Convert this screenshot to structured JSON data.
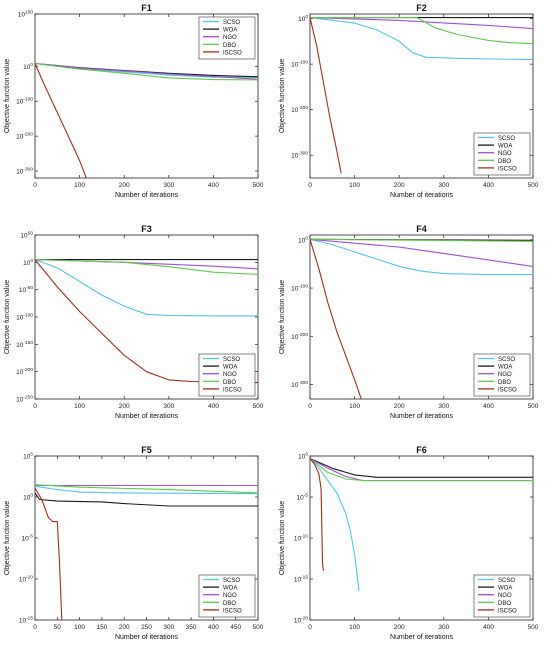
{
  "figure": {
    "series_names": [
      "SCSO",
      "WOA",
      "NGO",
      "DBO",
      "ISCSO"
    ],
    "colors": {
      "SCSO": "#57c4e5",
      "WOA": "#1a1a1a",
      "NGO": "#a24fd0",
      "DBO": "#5fc94a",
      "ISCSO": "#9c2f1e"
    }
  },
  "chart_data": [
    {
      "type": "line",
      "title": "F1",
      "xlabel": "Number of iterations",
      "ylabel": "Objective function value",
      "log_y": true,
      "xlim": [
        0,
        500
      ],
      "ylim_exp": [
        -320,
        150
      ],
      "x_ticks": [
        "0",
        "100",
        "200",
        "300",
        "400",
        "500"
      ],
      "y_ticks": [
        {
          "exp": 150,
          "label": "10^150"
        },
        {
          "exp": 0,
          "label": "10^0"
        },
        {
          "exp": -100,
          "label": "10^-100"
        },
        {
          "exp": -200,
          "label": "10^-200"
        },
        {
          "exp": -300,
          "label": "10^-300"
        }
      ],
      "legend": {
        "position": "top-right",
        "entries": [
          "SCSO",
          "WOA",
          "NGO",
          "DBO",
          "ISCSO"
        ]
      },
      "series": [
        {
          "name": "SCSO",
          "points": [
            [
              0,
              8
            ],
            [
              50,
              0
            ],
            [
              100,
              -8
            ],
            [
              200,
              -16
            ],
            [
              300,
              -25
            ],
            [
              400,
              -31
            ],
            [
              500,
              -32
            ]
          ]
        },
        {
          "name": "WOA",
          "points": [
            [
              0,
              8
            ],
            [
              50,
              2
            ],
            [
              100,
              -4
            ],
            [
              200,
              -12
            ],
            [
              300,
              -20
            ],
            [
              400,
              -26
            ],
            [
              500,
              -30
            ]
          ]
        },
        {
          "name": "NGO",
          "points": [
            [
              0,
              8
            ],
            [
              50,
              2
            ],
            [
              100,
              -5
            ],
            [
              200,
              -13
            ],
            [
              300,
              -22
            ],
            [
              400,
              -29
            ],
            [
              500,
              -37
            ]
          ]
        },
        {
          "name": "DBO",
          "points": [
            [
              0,
              8
            ],
            [
              50,
              0
            ],
            [
              100,
              -8
            ],
            [
              200,
              -20
            ],
            [
              300,
              -33
            ],
            [
              400,
              -38
            ],
            [
              500,
              -39
            ]
          ]
        },
        {
          "name": "ISCSO",
          "points": [
            [
              0,
              8
            ],
            [
              20,
              -50
            ],
            [
              40,
              -105
            ],
            [
              60,
              -160
            ],
            [
              80,
              -215
            ],
            [
              100,
              -270
            ],
            [
              115,
              -320
            ]
          ]
        }
      ]
    },
    {
      "type": "line",
      "title": "F2",
      "xlabel": "Number of iterations",
      "ylabel": "Objective function value",
      "log_y": true,
      "xlim": [
        0,
        500
      ],
      "ylim_exp": [
        -350,
        10
      ],
      "x_ticks": [
        "0",
        "100",
        "200",
        "300",
        "400",
        "500"
      ],
      "y_ticks": [
        {
          "exp": 0,
          "label": "10^0"
        },
        {
          "exp": -100,
          "label": "10^-100"
        },
        {
          "exp": -200,
          "label": "10^-200"
        },
        {
          "exp": -300,
          "label": "10^-300"
        }
      ],
      "legend": {
        "position": "bottom-right",
        "entries": [
          "SCSO",
          "WOA",
          "NGO",
          "DBO",
          "ISCSO"
        ]
      },
      "series": [
        {
          "name": "SCSO",
          "points": [
            [
              0,
              2
            ],
            [
              100,
              -10
            ],
            [
              150,
              -25
            ],
            [
              200,
              -50
            ],
            [
              230,
              -75
            ],
            [
              260,
              -85
            ],
            [
              350,
              -88
            ],
            [
              500,
              -90
            ]
          ]
        },
        {
          "name": "WOA",
          "points": [
            [
              0,
              2
            ],
            [
              500,
              2
            ]
          ]
        },
        {
          "name": "NGO",
          "points": [
            [
              0,
              2
            ],
            [
              200,
              -4
            ],
            [
              400,
              -15
            ],
            [
              500,
              -22
            ]
          ]
        },
        {
          "name": "DBO",
          "points": [
            [
              0,
              2
            ],
            [
              240,
              2
            ],
            [
              280,
              -20
            ],
            [
              330,
              -35
            ],
            [
              400,
              -48
            ],
            [
              450,
              -53
            ],
            [
              500,
              -55
            ]
          ]
        },
        {
          "name": "ISCSO",
          "points": [
            [
              0,
              2
            ],
            [
              15,
              -60
            ],
            [
              30,
              -140
            ],
            [
              45,
              -220
            ],
            [
              60,
              -290
            ],
            [
              70,
              -340
            ]
          ]
        }
      ]
    },
    {
      "type": "line",
      "title": "F3",
      "xlabel": "Number of iterations",
      "ylabel": "Objective function value",
      "log_y": true,
      "xlim": [
        0,
        500
      ],
      "ylim_exp": [
        -250,
        50
      ],
      "x_ticks": [
        "0",
        "100",
        "200",
        "300",
        "400",
        "500"
      ],
      "y_ticks": [
        {
          "exp": 50,
          "label": "10^50"
        },
        {
          "exp": 0,
          "label": "10^0"
        },
        {
          "exp": -50,
          "label": "10^-50"
        },
        {
          "exp": -100,
          "label": "10^-100"
        },
        {
          "exp": -150,
          "label": "10^-150"
        },
        {
          "exp": -200,
          "label": "10^-200"
        },
        {
          "exp": -250,
          "label": "10^-250"
        }
      ],
      "legend": {
        "position": "bottom-right",
        "entries": [
          "SCSO",
          "WOA",
          "NGO",
          "DBO",
          "ISCSO"
        ]
      },
      "series": [
        {
          "name": "SCSO",
          "points": [
            [
              0,
              5
            ],
            [
              50,
              -10
            ],
            [
              100,
              -35
            ],
            [
              150,
              -60
            ],
            [
              200,
              -80
            ],
            [
              250,
              -95
            ],
            [
              300,
              -97
            ],
            [
              400,
              -98
            ],
            [
              500,
              -98
            ]
          ]
        },
        {
          "name": "WOA",
          "points": [
            [
              0,
              5
            ],
            [
              500,
              5
            ]
          ]
        },
        {
          "name": "NGO",
          "points": [
            [
              0,
              5
            ],
            [
              200,
              0
            ],
            [
              400,
              -7
            ],
            [
              500,
              -12
            ]
          ]
        },
        {
          "name": "DBO",
          "points": [
            [
              0,
              5
            ],
            [
              200,
              0
            ],
            [
              300,
              -8
            ],
            [
              400,
              -18
            ],
            [
              500,
              -22
            ]
          ]
        },
        {
          "name": "ISCSO",
          "points": [
            [
              0,
              5
            ],
            [
              50,
              -45
            ],
            [
              100,
              -90
            ],
            [
              150,
              -130
            ],
            [
              200,
              -170
            ],
            [
              250,
              -200
            ],
            [
              300,
              -215
            ],
            [
              350,
              -218
            ],
            [
              500,
              -220
            ]
          ]
        }
      ]
    },
    {
      "type": "line",
      "title": "F4",
      "xlabel": "Number of iterations",
      "ylabel": "Objective function value",
      "log_y": true,
      "xlim": [
        0,
        500
      ],
      "ylim_exp": [
        -330,
        10
      ],
      "x_ticks": [
        "0",
        "100",
        "200",
        "300",
        "400",
        "500"
      ],
      "y_ticks": [
        {
          "exp": 0,
          "label": "10^0"
        },
        {
          "exp": -100,
          "label": "10^-100"
        },
        {
          "exp": -200,
          "label": "10^-200"
        },
        {
          "exp": -300,
          "label": "10^-300"
        }
      ],
      "legend": {
        "position": "bottom-right",
        "entries": [
          "SCSO",
          "WOA",
          "NGO",
          "DBO",
          "ISCSO"
        ]
      },
      "series": [
        {
          "name": "SCSO",
          "points": [
            [
              0,
              1
            ],
            [
              50,
              -10
            ],
            [
              100,
              -25
            ],
            [
              150,
              -40
            ],
            [
              200,
              -55
            ],
            [
              250,
              -65
            ],
            [
              300,
              -70
            ],
            [
              400,
              -72
            ],
            [
              500,
              -72
            ]
          ]
        },
        {
          "name": "WOA",
          "points": [
            [
              0,
              1
            ],
            [
              500,
              -1
            ]
          ]
        },
        {
          "name": "NGO",
          "points": [
            [
              0,
              1
            ],
            [
              200,
              -15
            ],
            [
              350,
              -35
            ],
            [
              500,
              -55
            ]
          ]
        },
        {
          "name": "DBO",
          "points": [
            [
              0,
              1
            ],
            [
              500,
              -3
            ]
          ]
        },
        {
          "name": "ISCSO",
          "points": [
            [
              0,
              1
            ],
            [
              20,
              -60
            ],
            [
              40,
              -130
            ],
            [
              60,
              -190
            ],
            [
              80,
              -240
            ],
            [
              100,
              -290
            ],
            [
              115,
              -330
            ]
          ]
        }
      ]
    },
    {
      "type": "line",
      "title": "F5",
      "xlabel": "Number of iterations",
      "ylabel": "Objective function value",
      "log_y": true,
      "xlim": [
        0,
        500
      ],
      "ylim_exp": [
        -15,
        5
      ],
      "x_ticks": [
        "0",
        "50",
        "100",
        "150",
        "200",
        "250",
        "300",
        "350",
        "400",
        "450",
        "500"
      ],
      "y_ticks": [
        {
          "exp": 5,
          "label": "10^5"
        },
        {
          "exp": 0,
          "label": "10^0"
        },
        {
          "exp": -5,
          "label": "10^-5"
        },
        {
          "exp": -10,
          "label": "10^-10"
        },
        {
          "exp": -15,
          "label": "10^-15"
        }
      ],
      "legend": {
        "position": "bottom-right",
        "entries": [
          "SCSO",
          "WOA",
          "NGO",
          "DBO",
          "ISCSO"
        ]
      },
      "series": [
        {
          "name": "SCSO",
          "points": [
            [
              0,
              1.3
            ],
            [
              50,
              0.9
            ],
            [
              100,
              0.6
            ],
            [
              200,
              0.5
            ],
            [
              500,
              0.4
            ]
          ]
        },
        {
          "name": "WOA",
          "points": [
            [
              0,
              0.5
            ],
            [
              10,
              -0.3
            ],
            [
              50,
              -0.5
            ],
            [
              150,
              -0.6
            ],
            [
              200,
              -0.8
            ],
            [
              300,
              -1.1
            ],
            [
              500,
              -1.1
            ]
          ]
        },
        {
          "name": "NGO",
          "points": [
            [
              0,
              1.4
            ],
            [
              500,
              1.4
            ]
          ]
        },
        {
          "name": "DBO",
          "points": [
            [
              0,
              1.5
            ],
            [
              100,
              1.2
            ],
            [
              300,
              0.9
            ],
            [
              500,
              0.5
            ]
          ]
        },
        {
          "name": "ISCSO",
          "points": [
            [
              0,
              1.1
            ],
            [
              15,
              -0.3
            ],
            [
              30,
              -2.5
            ],
            [
              40,
              -3.0
            ],
            [
              50,
              -3.0
            ],
            [
              55,
              -8.0
            ],
            [
              60,
              -15.0
            ]
          ]
        }
      ]
    },
    {
      "type": "line",
      "title": "F6",
      "xlabel": "Number of iterations",
      "ylabel": "Objective function value",
      "log_y": true,
      "xlim": [
        0,
        500
      ],
      "ylim_exp": [
        -20,
        0
      ],
      "x_ticks": [
        "0",
        "100",
        "200",
        "300",
        "400",
        "500"
      ],
      "y_ticks": [
        {
          "exp": 0,
          "label": "10^0"
        },
        {
          "exp": -5,
          "label": "10^-5"
        },
        {
          "exp": -10,
          "label": "10^-10"
        },
        {
          "exp": -15,
          "label": "10^-15"
        },
        {
          "exp": -20,
          "label": "10^-20"
        }
      ],
      "legend": {
        "position": "bottom-right",
        "entries": [
          "SCSO",
          "WOA",
          "NGO",
          "DBO",
          "ISCSO"
        ]
      },
      "series": [
        {
          "name": "SCSO",
          "points": [
            [
              0,
              -0.3
            ],
            [
              20,
              -1.5
            ],
            [
              40,
              -3.0
            ],
            [
              60,
              -4.5
            ],
            [
              80,
              -7.0
            ],
            [
              90,
              -9.0
            ],
            [
              100,
              -12.0
            ],
            [
              110,
              -16.5
            ]
          ]
        },
        {
          "name": "WOA",
          "points": [
            [
              0,
              -0.3
            ],
            [
              50,
              -1.5
            ],
            [
              100,
              -2.3
            ],
            [
              150,
              -2.6
            ],
            [
              500,
              -2.6
            ]
          ]
        },
        {
          "name": "NGO",
          "points": [
            [
              0,
              -0.3
            ],
            [
              40,
              -1.5
            ],
            [
              80,
              -2.5
            ],
            [
              120,
              -3.0
            ],
            [
              500,
              -3.0
            ]
          ]
        },
        {
          "name": "DBO",
          "points": [
            [
              0,
              -0.3
            ],
            [
              40,
              -2.0
            ],
            [
              80,
              -2.8
            ],
            [
              120,
              -3.0
            ],
            [
              500,
              -3.0
            ]
          ]
        },
        {
          "name": "ISCSO",
          "points": [
            [
              0,
              -0.3
            ],
            [
              10,
              -1.0
            ],
            [
              20,
              -2.2
            ],
            [
              25,
              -4.0
            ],
            [
              28,
              -13.0
            ],
            [
              30,
              -14.0
            ]
          ]
        }
      ]
    }
  ]
}
